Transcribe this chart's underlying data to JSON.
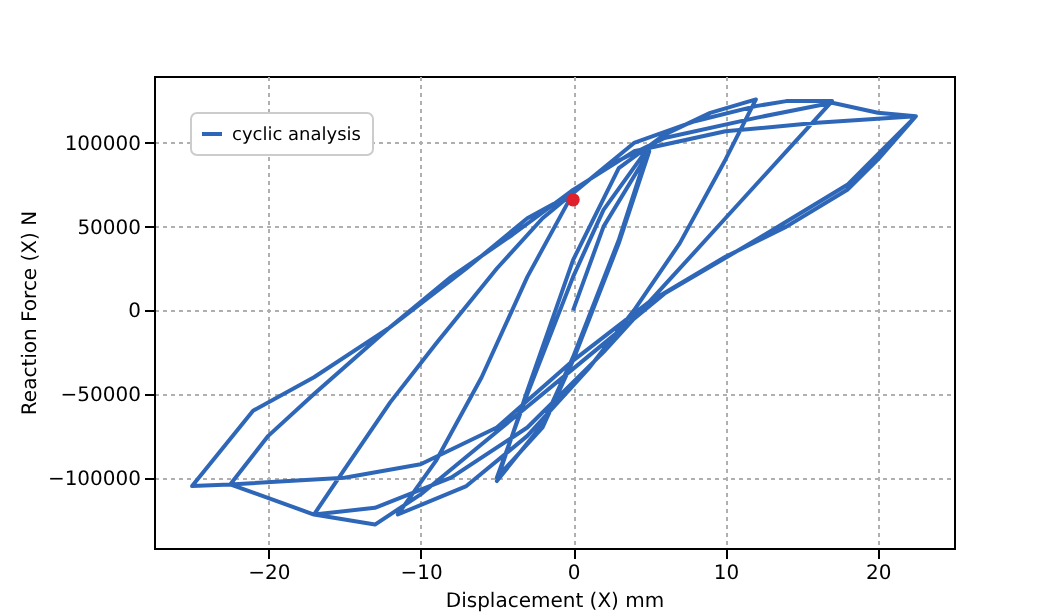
{
  "chart_data": {
    "type": "line",
    "xlabel": "Displacement (X) mm",
    "ylabel": "Reaction Force (X) N",
    "xlim": [
      -27.5,
      25
    ],
    "ylim": [
      -142000,
      140000
    ],
    "xticks": [
      -20,
      -10,
      0,
      10,
      20
    ],
    "yticks": [
      -100000,
      -50000,
      0,
      50000,
      100000
    ],
    "grid": true,
    "legend": "top left",
    "series": [
      {
        "name": "cyclic analysis",
        "color": "#2f67b8",
        "marker": "none",
        "line_style": "solid",
        "x": [
          0,
          2,
          5,
          3,
          0,
          -2,
          -5,
          -3,
          0,
          2,
          5,
          3,
          0,
          -2,
          -5,
          -3,
          0,
          3,
          6,
          9,
          12,
          10,
          7,
          4,
          1,
          -3,
          -7,
          -11.5,
          -9,
          -6,
          -3,
          0,
          4,
          8,
          12,
          14,
          17,
          14,
          10,
          6,
          2,
          -3,
          -8,
          -13,
          -17,
          -15,
          -12,
          -9,
          -5,
          -2,
          2,
          6,
          12,
          17,
          20,
          22.5,
          20,
          18,
          14,
          10,
          5,
          0,
          -5,
          -10,
          -15,
          -22.5,
          -20,
          -17,
          -12,
          -8,
          -4,
          0,
          4,
          10,
          16,
          22.5,
          18,
          12,
          6,
          0,
          -6,
          -10,
          -13,
          -17,
          -22.5,
          -25,
          -21,
          -17,
          -12,
          -7,
          -3,
          0
        ],
        "values": [
          0,
          50000,
          95000,
          40000,
          -30000,
          -70000,
          -100000,
          -50000,
          20000,
          60000,
          98000,
          42000,
          -28000,
          -68000,
          -102000,
          -48000,
          30000,
          85000,
          105000,
          118000,
          126000,
          90000,
          40000,
          0,
          -35000,
          -75000,
          -105000,
          -122000,
          -90000,
          -40000,
          20000,
          70000,
          100000,
          113000,
          122000,
          125000,
          125000,
          95000,
          55000,
          15000,
          -25000,
          -70000,
          -100000,
          -118000,
          -122000,
          -95000,
          -55000,
          -20000,
          25000,
          55000,
          85000,
          103000,
          115000,
          124000,
          118000,
          116000,
          90000,
          72000,
          50000,
          32000,
          5000,
          -30000,
          -70000,
          -92000,
          -100000,
          -104000,
          -75000,
          -50000,
          -10000,
          20000,
          45000,
          72000,
          95000,
          107000,
          112000,
          116000,
          75000,
          42000,
          10000,
          -35000,
          -80000,
          -110000,
          -128000,
          -122000,
          -104000,
          -105000,
          -60000,
          -40000,
          -10000,
          25000,
          55000,
          70000
        ]
      },
      {
        "color": "#e0202a",
        "type": "scatter",
        "marker": "circle",
        "x": [
          0
        ],
        "values": [
          66000
        ]
      }
    ]
  }
}
